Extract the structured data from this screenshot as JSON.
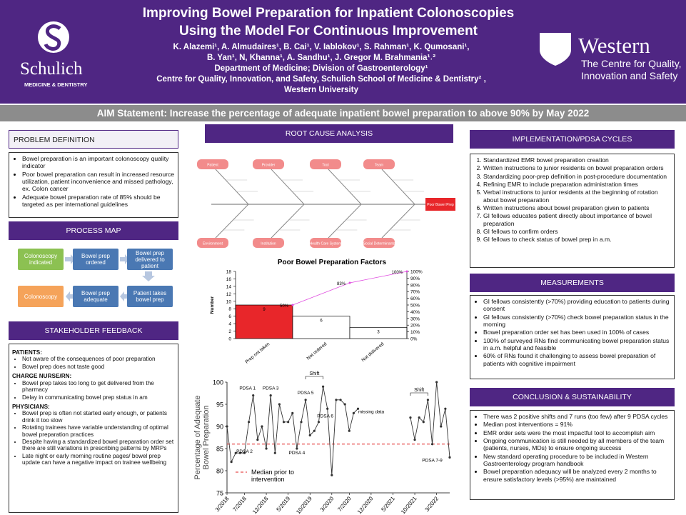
{
  "header": {
    "title_lines": [
      "Improving Bowel Preparation for Inpatient Colonoscopies",
      "Using the Model For Continuous Improvement"
    ],
    "lines": [
      "K. Alazemi¹, A. Almudaires¹, B. Cai¹, V. Iablokov¹, S. Rahman¹, K. Qumosani¹,",
      "B. Yan¹, N, Khanna¹, A. Sandhu¹, J. Gregor M. Brahmania¹˒²",
      "Department of Medicine; Division of Gastroenterology¹",
      "Centre for Quality, Innovation, and Safety, Schulich School of Medicine & Dentistry² ,",
      "Western University"
    ],
    "left_logo": {
      "name": "Schulich",
      "sub": "MEDICINE & DENTISTRY"
    },
    "right_logo": {
      "name": "Western",
      "sub_lines": [
        "The Centre for Quality,",
        "Innovation and Safety"
      ]
    }
  },
  "aim": "AIM Statement: Increase the percentage of adequate inpatient bowel preparation to above 90% by May 2022",
  "problem_definition": {
    "title": "PROBLEM DEFINITION",
    "bullets": [
      "Bowel preparation is an important colonoscopy quality indicator",
      "Poor bowel preparation can result in increased resource utilization, patient inconvenience and missed pathology, ex. Colon cancer",
      "Adequate bowel preparation rate of 85% should be targeted as per international guidelines"
    ]
  },
  "process_map": {
    "title": "PROCESS MAP",
    "steps": [
      "Colonoscopy indicated",
      "Bowel prep ordered",
      "Bowel prep delivered to patient",
      "Patient takes bowel prep",
      "Bowel prep adequate",
      "Colonoscopy"
    ]
  },
  "stakeholder_feedback": {
    "title": "STAKEHOLDER FEEDBACK",
    "groups": [
      {
        "heading": "PATIENTS:",
        "bullets": [
          "Not aware of the consequences of poor preparation",
          "Bowel prep does not taste good"
        ]
      },
      {
        "heading": "CHARGE NURSE/RN:",
        "bullets": [
          "Bowel prep takes too long to get delivered from the pharmacy",
          "Delay in communicating bowel prep status in am"
        ]
      },
      {
        "heading": "PHYSICIANS:",
        "bullets": [
          "Bowel prep is often not started early enough, or patients drink it too slow",
          "Rotating trainees have variable understanding of optimal bowel preparation practices",
          "Despite having a standardized bowel preparation order set there are still variations in prescribing patterns by MRPs",
          "Late night or early morning routine pages/ bowel prep update can have a negative impact on trainee wellbeing"
        ]
      }
    ]
  },
  "root_cause": {
    "title": "ROOT CAUSE ANALYSIS",
    "top_categories": [
      "Patient",
      "Provider",
      "Tool",
      "Team"
    ],
    "bottom_categories": [
      "Environment",
      "Institution",
      "Health Care System",
      "Social Determinants"
    ],
    "effect": "Poor Bowel Prep"
  },
  "pareto_chart": {
    "type": "bar",
    "title": "Poor Bowel Preparation Factors",
    "ylabel": "Number",
    "categories": [
      "Prep not taken",
      "Not ordered",
      "Not delivered"
    ],
    "values": [
      9,
      6,
      3
    ],
    "colors": [
      "#e8262a",
      "#ffffff",
      "#ffffff"
    ],
    "line_values": [
      50,
      83,
      100
    ],
    "line_value_labels": [
      "50%",
      "83%",
      "100%"
    ],
    "line_color": "#e04ee0",
    "ylim": [
      0,
      18
    ],
    "yticks": [
      0,
      2,
      4,
      6,
      8,
      10,
      12,
      14,
      16,
      18
    ],
    "y2lim": [
      0,
      100
    ],
    "y2ticks": [
      {
        "value": 0,
        "label": "0%"
      },
      {
        "value": 10,
        "label": "10%"
      },
      {
        "value": 20,
        "label": "20%"
      },
      {
        "value": 30,
        "label": "30%"
      },
      {
        "value": 40,
        "label": "40%"
      },
      {
        "value": 50,
        "label": "50%"
      },
      {
        "value": 60,
        "label": "60%"
      },
      {
        "value": 70,
        "label": "70%"
      },
      {
        "value": 80,
        "label": "80%"
      },
      {
        "value": 90,
        "label": "90%"
      },
      {
        "value": 100,
        "label": "100%"
      }
    ]
  },
  "run_chart": {
    "type": "line",
    "ylabel": [
      "Percentage of Adequate",
      "Bowel Preparation"
    ],
    "color": "#333333",
    "values": [
      90,
      82,
      84,
      84,
      84,
      91,
      97,
      87,
      90,
      85,
      97,
      84,
      95,
      91,
      91,
      93,
      85,
      91,
      96,
      88,
      89,
      91,
      99,
      94,
      79,
      96,
      96,
      95,
      89,
      93,
      94,
      null,
      null,
      null,
      null,
      null,
      null,
      null,
      null,
      null,
      null,
      null,
      92,
      87,
      92,
      91,
      96,
      86,
      100,
      90,
      94,
      83
    ],
    "xlim": [
      0,
      51
    ],
    "xticks": [
      {
        "value": 0,
        "label": "3/2018"
      },
      {
        "value": 4,
        "label": "7/2018"
      },
      {
        "value": 9,
        "label": "12/2018"
      },
      {
        "value": 14,
        "label": "5/2019"
      },
      {
        "value": 19,
        "label": "10/2019"
      },
      {
        "value": 24,
        "label": "3/2020"
      },
      {
        "value": 28,
        "label": "7/2020"
      },
      {
        "value": 33,
        "label": "12/2020"
      },
      {
        "value": 38,
        "label": "5/2021"
      },
      {
        "value": 43,
        "label": "10/2021"
      },
      {
        "value": 48,
        "label": "3/2022"
      }
    ],
    "ylim": [
      75,
      100
    ],
    "yticks": [
      75,
      80,
      85,
      90,
      95,
      100
    ],
    "median": {
      "value": 86,
      "label_lines": [
        "Median prior to",
        "intervention"
      ],
      "color": "#e02020"
    },
    "annotations": [
      "PDSA 1",
      "PDSA 2",
      "PDSA 3",
      "PDSA 4",
      "PDSA 5",
      "PDSA 6",
      "PDSA 7-9",
      "missing data"
    ],
    "shifts": [
      "Shift",
      "Shift"
    ]
  },
  "implementation": {
    "title": "IMPLEMENTATION/PDSA CYCLES",
    "items": [
      "Standardized EMR bowel preparation creation",
      "Written instructions to junior residents on bowel preparation orders",
      "Standardizing poor-prep definition in post-procedure documentation",
      "Refining EMR to include preparation administration times",
      "Verbal instructions to junior residents at the beginning of rotation about bowel preparation",
      "Written instructions about bowel preparation given to patients",
      "GI fellows educates patient directly about importance of bowel preparation",
      "GI fellows to confirm orders",
      "GI fellows to check status of bowel prep in a.m."
    ]
  },
  "measurements": {
    "title": "MEASUREMENTS",
    "bullets": [
      "GI fellows consistently (>70%) providing education to patients during consent",
      "GI fellows consistently (>70%) check bowel preparation status in the morning",
      "Bowel preparation order set has been used in 100% of cases",
      "100% of surveyed RNs find communicating bowel preparation status in a.m. helpful and feasible",
      "60% of RNs found it challenging to assess bowel preparation of patients with cognitive impairment"
    ]
  },
  "conclusion": {
    "title": "CONCLUSION & SUSTAINABILITY",
    "bullets": [
      "There was 2 positive shifts and 7 runs (too few) after  9 PDSA cycles",
      "Median post interventions = 91%",
      "EMR order sets were the most impactful tool to accomplish aim",
      "Ongoing communication is still needed by all members of the team (patients, nurses, MDs) to ensure ongoing success",
      "New standard operating procedure to be included in Western Gastroenterology program handbook",
      "Bowel preparation adequacy will be analyzed every 2 months to ensure satisfactory levels (>95%) are maintained"
    ]
  }
}
